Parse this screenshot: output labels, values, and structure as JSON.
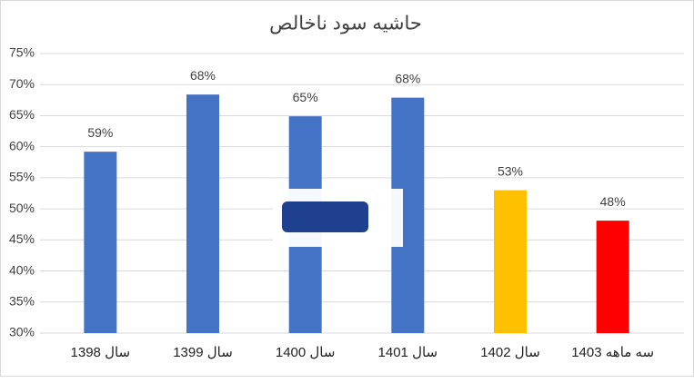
{
  "chart_data": {
    "type": "bar",
    "title": "حاشیه سود ناخالص",
    "categories": [
      "سال 1398",
      "سال 1399",
      "سال 1400",
      "سال 1401",
      "سال 1402",
      "سه ماهه 1403"
    ],
    "values": [
      59.2,
      68.4,
      64.9,
      67.9,
      53.0,
      48.1
    ],
    "value_labels": [
      "59%",
      "68%",
      "65%",
      "68%",
      "53%",
      "48%"
    ],
    "colors": [
      "#4472c4",
      "#4472c4",
      "#4472c4",
      "#4472c4",
      "#ffc000",
      "#ff0000"
    ],
    "ylim": [
      30,
      75
    ],
    "yticks": [
      {
        "value": 30,
        "label": "30%"
      },
      {
        "value": 35,
        "label": "35%"
      },
      {
        "value": 40,
        "label": "40%"
      },
      {
        "value": 45,
        "label": "45%"
      },
      {
        "value": 50,
        "label": "50%"
      },
      {
        "value": 55,
        "label": "55%"
      },
      {
        "value": 60,
        "label": "60%"
      },
      {
        "value": 65,
        "label": "65%"
      },
      {
        "value": 70,
        "label": "70%"
      },
      {
        "value": 75,
        "label": "75%"
      }
    ],
    "grid": true
  }
}
